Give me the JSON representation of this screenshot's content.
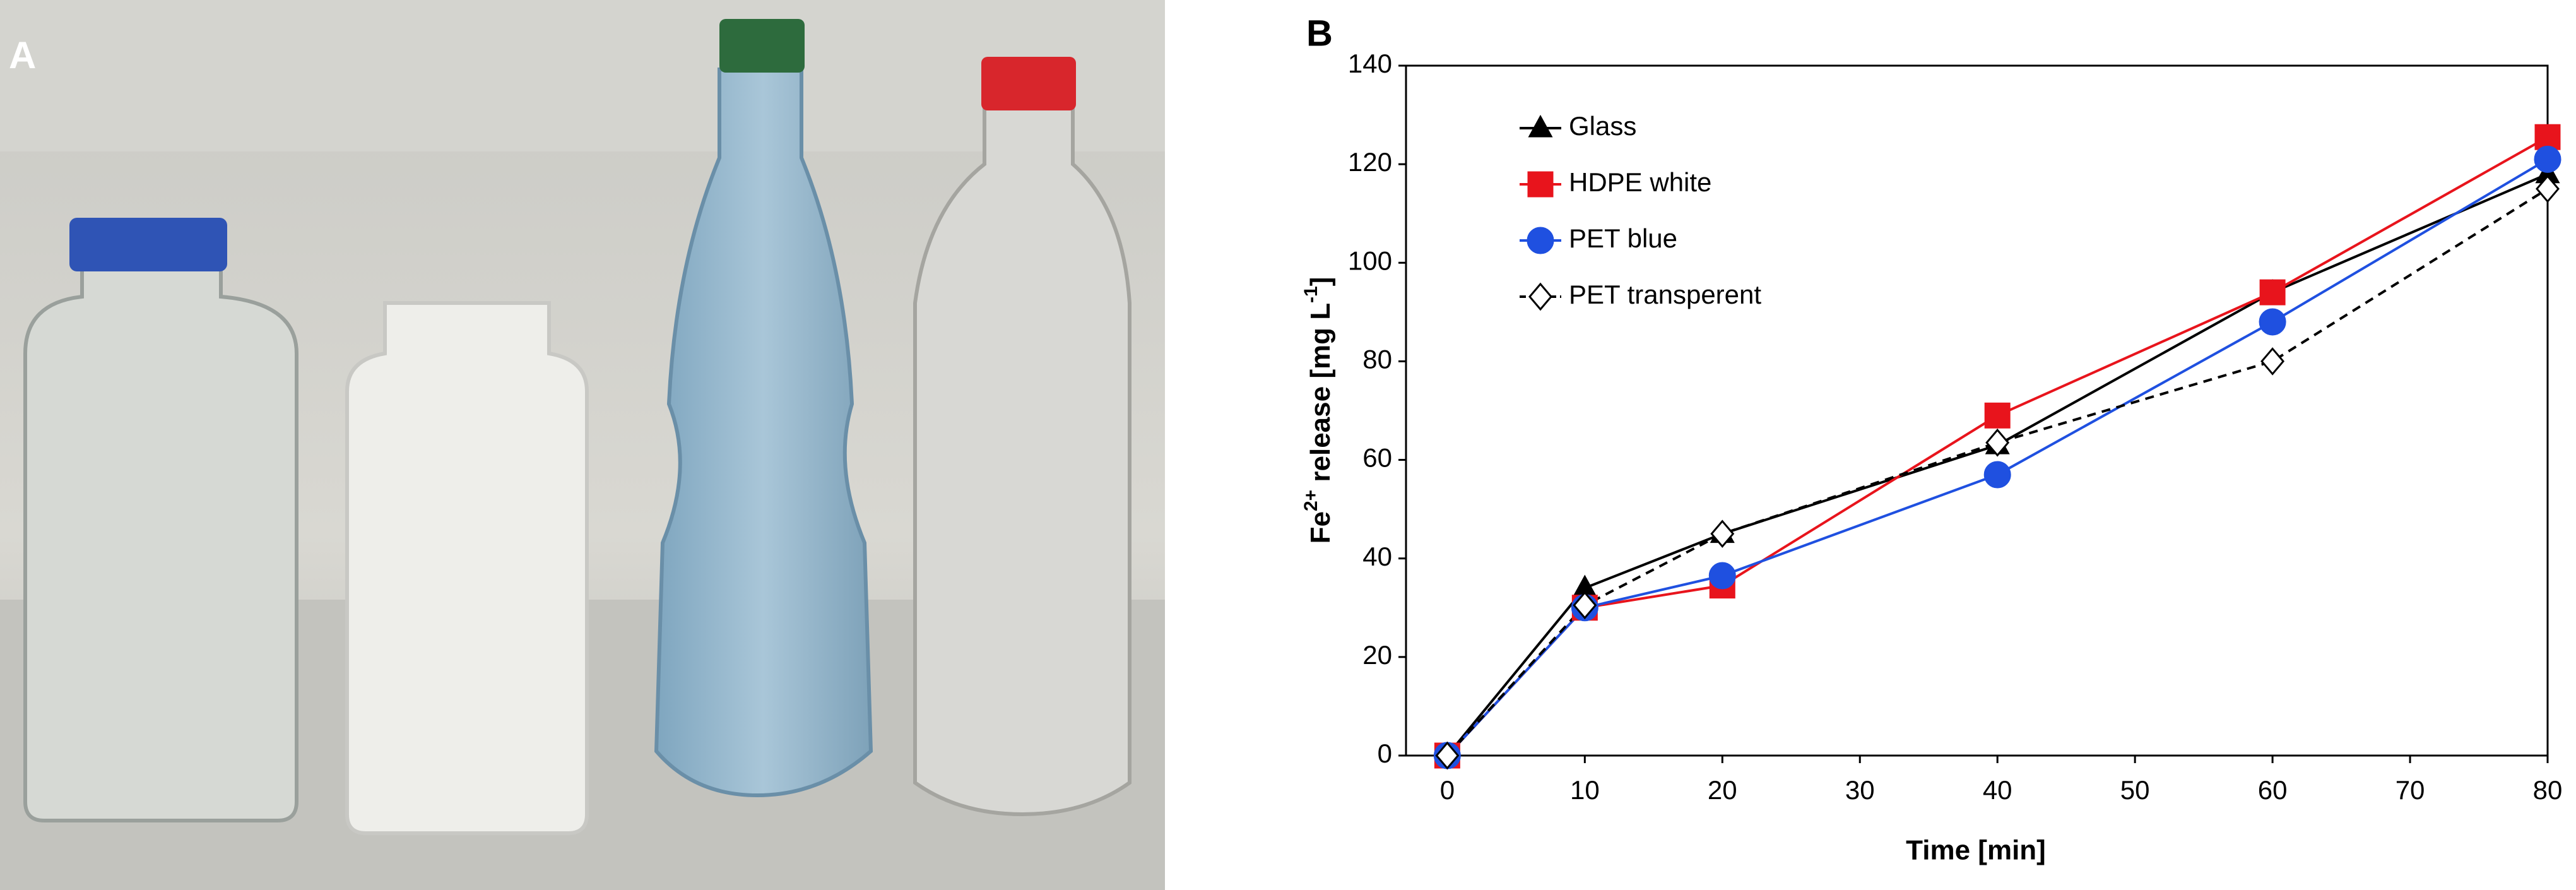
{
  "panel_a": {
    "label": "A"
  },
  "chart_data": {
    "type": "line",
    "panel_label": "B",
    "x_label": "Time [min]",
    "y_label_parts": [
      "Fe",
      "2+",
      " release [mg L",
      "-1",
      "]"
    ],
    "x": [
      0,
      10,
      20,
      40,
      60,
      80
    ],
    "series": [
      {
        "name": "Glass",
        "color": "#000000",
        "marker": "triangle",
        "fill": "#000000",
        "dash": false,
        "values": [
          0,
          34,
          45,
          63,
          94,
          118
        ]
      },
      {
        "name": "HDPE white",
        "color": "#e8141c",
        "marker": "square",
        "fill": "#e8141c",
        "dash": false,
        "values": [
          0,
          30,
          34.5,
          69,
          94,
          125.5
        ]
      },
      {
        "name": "PET blue",
        "color": "#1f50e0",
        "marker": "circle",
        "fill": "#1f50e0",
        "dash": false,
        "values": [
          0,
          30,
          36.5,
          57,
          88,
          121
        ]
      },
      {
        "name": "PET transperent",
        "color": "#000000",
        "marker": "diamond",
        "fill": "#ffffff",
        "dash": true,
        "values": [
          0,
          30.5,
          45,
          63.5,
          80,
          115
        ]
      }
    ],
    "xlim": [
      -3,
      80
    ],
    "xticks": [
      0,
      10,
      20,
      30,
      40,
      50,
      60,
      70,
      80
    ],
    "ylim": [
      0,
      140
    ],
    "yticks": [
      0,
      20,
      40,
      60,
      80,
      100,
      120,
      140
    ],
    "legend": "upper-left"
  }
}
